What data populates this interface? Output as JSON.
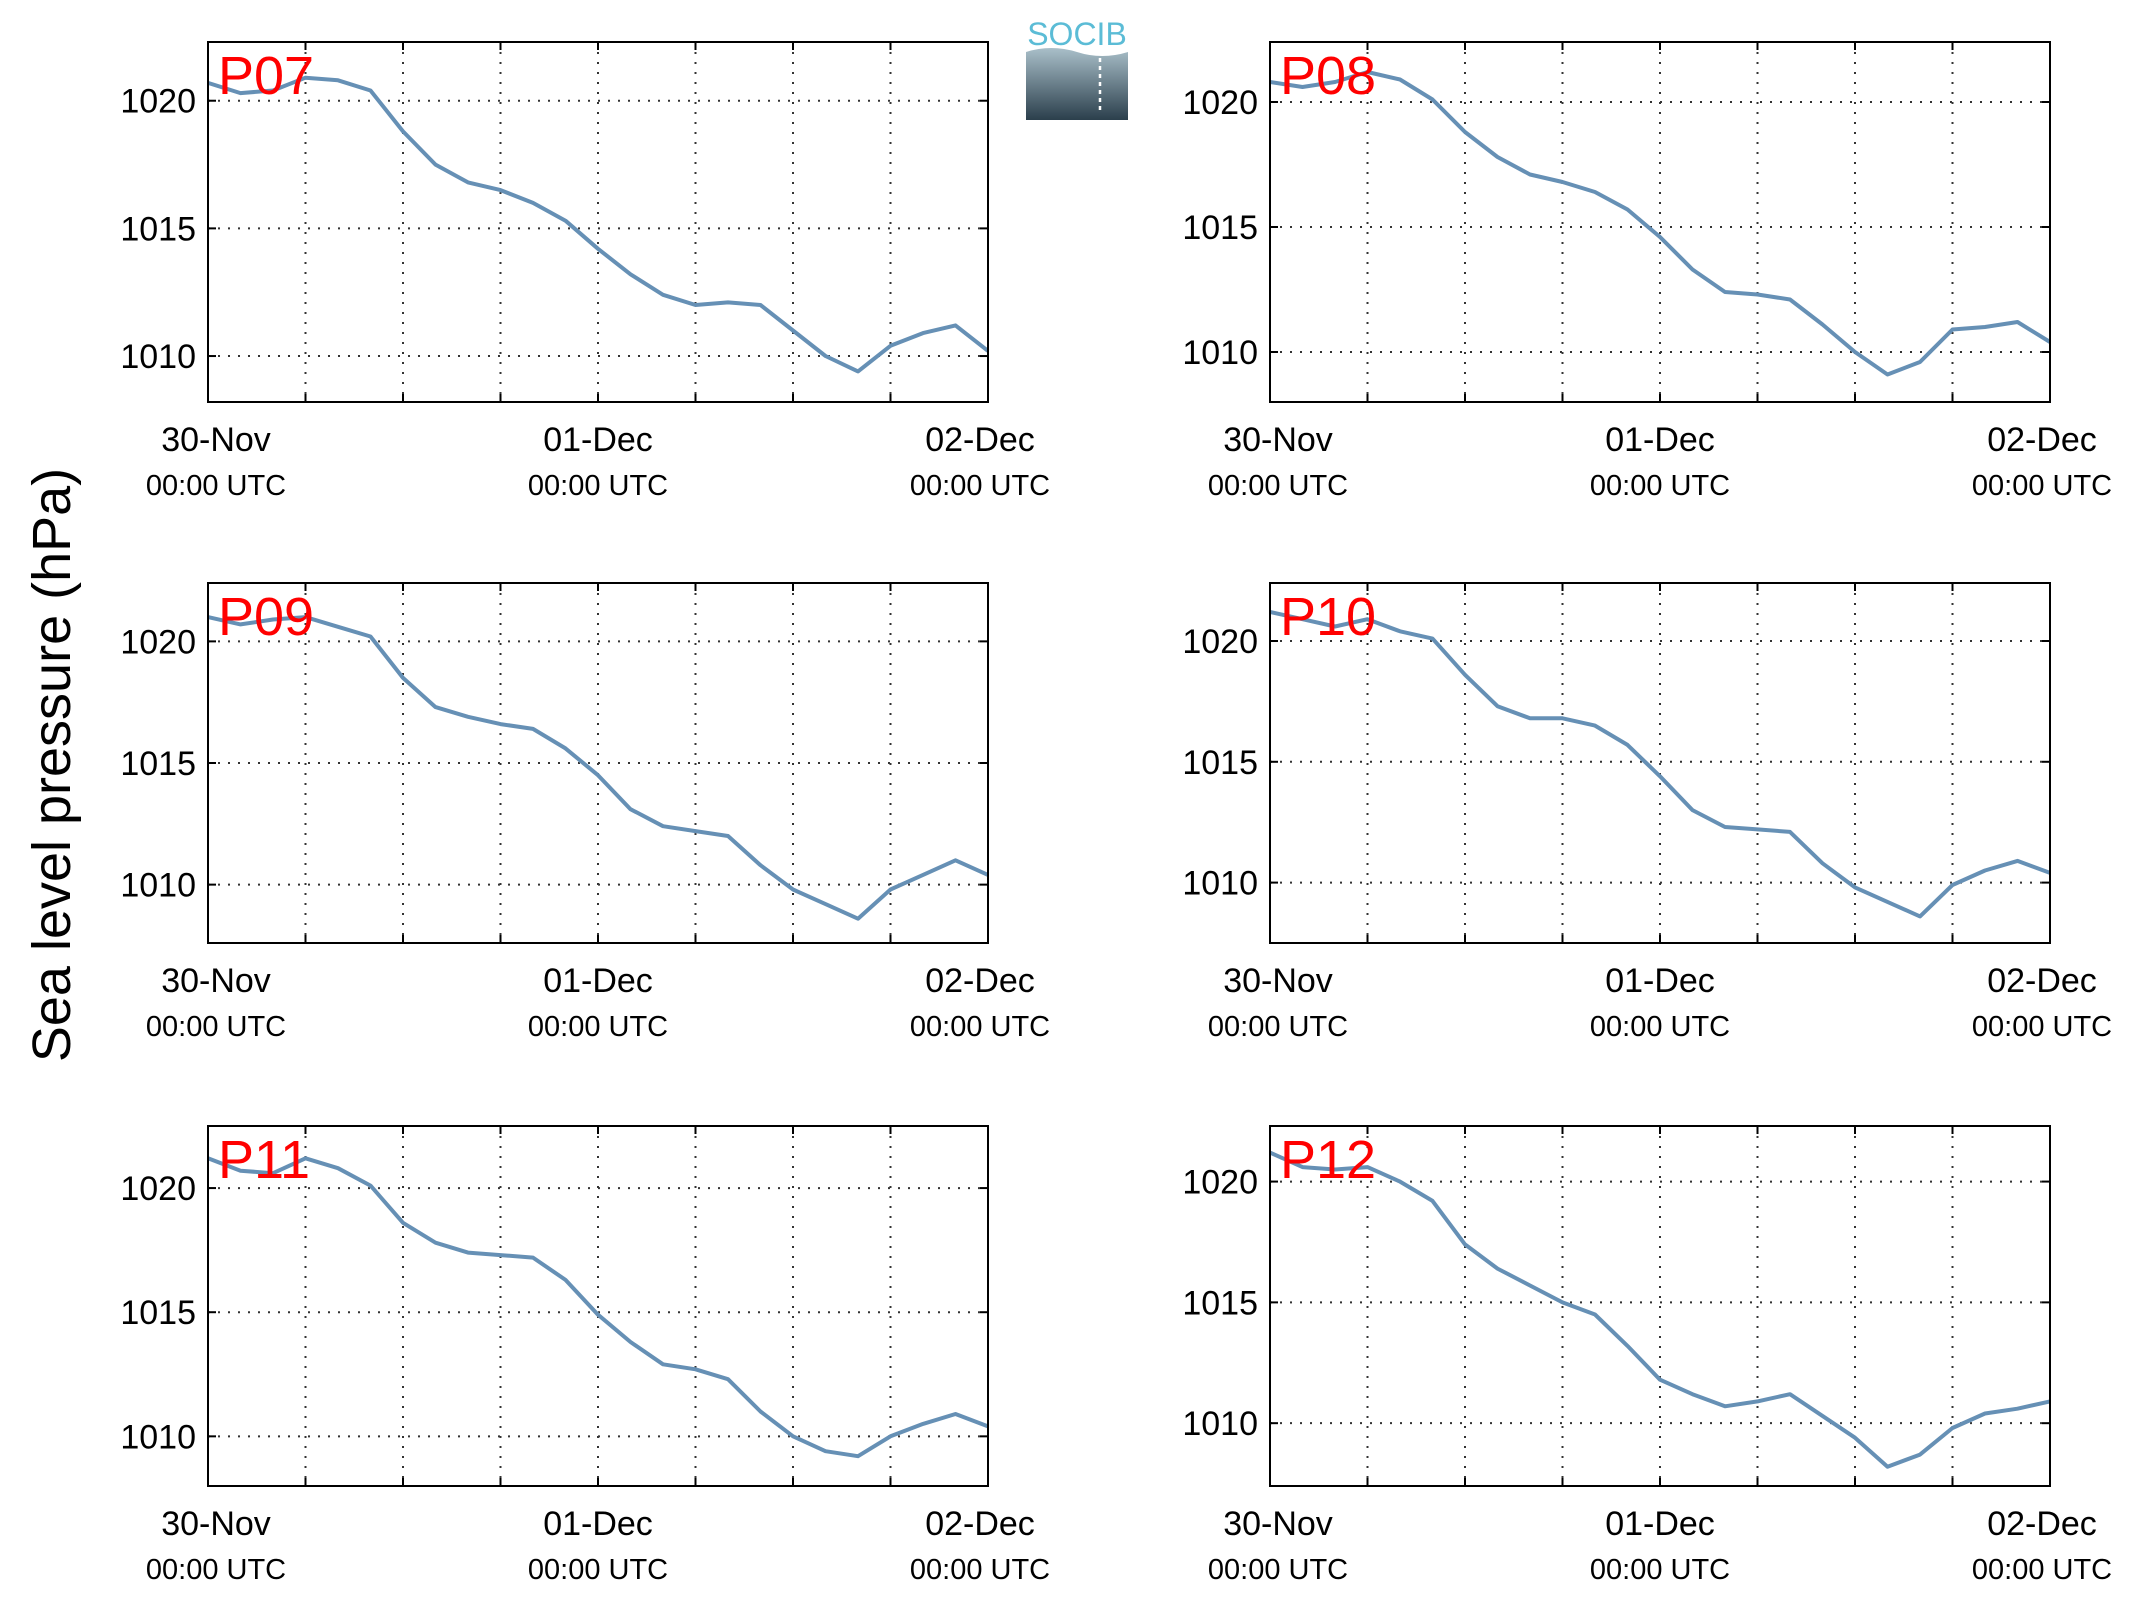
{
  "figure": {
    "ylabel": "Sea level pressure (hPa)",
    "logo_text": "SOCIB",
    "colors": {
      "line": "#6690b5",
      "station_label": "#ff0000",
      "grid": "#333333",
      "axes": "#000000",
      "logo_top": "#5bbcd6",
      "logo_bottom": "#2b3f4c"
    }
  },
  "chart_data": [
    {
      "type": "line",
      "station": "P07",
      "x_ticks": [
        {
          "line1": "30-Nov",
          "line2": "00:00 UTC"
        },
        {
          "line1": "01-Dec",
          "line2": "00:00 UTC"
        },
        {
          "line1": "02-Dec",
          "line2": "00:00 UTC"
        }
      ],
      "x_hours": [
        0,
        2,
        4,
        6,
        8,
        10,
        12,
        14,
        16,
        18,
        20,
        22,
        24,
        26,
        28,
        30,
        32,
        34,
        36,
        38,
        40,
        42,
        44,
        46,
        48
      ],
      "values": [
        1020.7,
        1020.3,
        1020.4,
        1020.9,
        1020.8,
        1020.4,
        1018.8,
        1017.5,
        1016.8,
        1016.5,
        1016.0,
        1015.3,
        1014.2,
        1013.2,
        1012.4,
        1012.0,
        1012.1,
        1012.0,
        1011.0,
        1010.0,
        1009.4,
        1010.4,
        1010.9,
        1011.2,
        1010.2
      ],
      "y_ticks": [
        1010,
        1015,
        1020
      ],
      "ylim": [
        1008.2,
        1022.3
      ],
      "xlim_hours": [
        0,
        48
      ],
      "grid": true
    },
    {
      "type": "line",
      "station": "P08",
      "x_ticks": [
        {
          "line1": "30-Nov",
          "line2": "00:00 UTC"
        },
        {
          "line1": "01-Dec",
          "line2": "00:00 UTC"
        },
        {
          "line1": "02-Dec",
          "line2": "00:00 UTC"
        }
      ],
      "x_hours": [
        0,
        2,
        4,
        6,
        8,
        10,
        12,
        14,
        16,
        18,
        20,
        22,
        24,
        26,
        28,
        30,
        32,
        34,
        36,
        38,
        40,
        42,
        44,
        46,
        48
      ],
      "values": [
        1020.8,
        1020.6,
        1020.8,
        1021.2,
        1020.9,
        1020.1,
        1018.8,
        1017.8,
        1017.1,
        1016.8,
        1016.4,
        1015.7,
        1014.6,
        1013.3,
        1012.4,
        1012.3,
        1012.1,
        1011.1,
        1010.0,
        1009.1,
        1009.6,
        1010.9,
        1011.0,
        1011.2,
        1010.4
      ],
      "y_ticks": [
        1010,
        1015,
        1020
      ],
      "ylim": [
        1008.0,
        1022.4
      ],
      "xlim_hours": [
        0,
        48
      ],
      "grid": true
    },
    {
      "type": "line",
      "station": "P09",
      "x_ticks": [
        {
          "line1": "30-Nov",
          "line2": "00:00 UTC"
        },
        {
          "line1": "01-Dec",
          "line2": "00:00 UTC"
        },
        {
          "line1": "02-Dec",
          "line2": "00:00 UTC"
        }
      ],
      "x_hours": [
        0,
        2,
        4,
        6,
        8,
        10,
        12,
        14,
        16,
        18,
        20,
        22,
        24,
        26,
        28,
        30,
        32,
        34,
        36,
        38,
        40,
        42,
        44,
        46,
        48
      ],
      "values": [
        1021.0,
        1020.7,
        1020.9,
        1021.0,
        1020.6,
        1020.2,
        1018.5,
        1017.3,
        1016.9,
        1016.6,
        1016.4,
        1015.6,
        1014.5,
        1013.1,
        1012.4,
        1012.2,
        1012.0,
        1010.8,
        1009.8,
        1009.2,
        1008.6,
        1009.8,
        1010.4,
        1011.0,
        1010.4
      ],
      "y_ticks": [
        1010,
        1015,
        1020
      ],
      "ylim": [
        1007.6,
        1022.4
      ],
      "xlim_hours": [
        0,
        48
      ],
      "grid": true
    },
    {
      "type": "line",
      "station": "P10",
      "x_ticks": [
        {
          "line1": "30-Nov",
          "line2": "00:00 UTC"
        },
        {
          "line1": "01-Dec",
          "line2": "00:00 UTC"
        },
        {
          "line1": "02-Dec",
          "line2": "00:00 UTC"
        }
      ],
      "x_hours": [
        0,
        2,
        4,
        6,
        8,
        10,
        12,
        14,
        16,
        18,
        20,
        22,
        24,
        26,
        28,
        30,
        32,
        34,
        36,
        38,
        40,
        42,
        44,
        46,
        48
      ],
      "values": [
        1021.2,
        1020.9,
        1020.6,
        1020.9,
        1020.4,
        1020.1,
        1018.6,
        1017.3,
        1016.8,
        1016.8,
        1016.5,
        1015.7,
        1014.4,
        1013.0,
        1012.3,
        1012.2,
        1012.1,
        1010.8,
        1009.8,
        1009.2,
        1008.6,
        1009.9,
        1010.5,
        1010.9,
        1010.4
      ],
      "y_ticks": [
        1010,
        1015,
        1020
      ],
      "ylim": [
        1007.5,
        1022.4
      ],
      "xlim_hours": [
        0,
        48
      ],
      "grid": true
    },
    {
      "type": "line",
      "station": "P11",
      "x_ticks": [
        {
          "line1": "30-Nov",
          "line2": "00:00 UTC"
        },
        {
          "line1": "01-Dec",
          "line2": "00:00 UTC"
        },
        {
          "line1": "02-Dec",
          "line2": "00:00 UTC"
        }
      ],
      "x_hours": [
        0,
        2,
        4,
        6,
        8,
        10,
        12,
        14,
        16,
        18,
        20,
        22,
        24,
        26,
        28,
        30,
        32,
        34,
        36,
        38,
        40,
        42,
        44,
        46,
        48
      ],
      "values": [
        1021.2,
        1020.7,
        1020.6,
        1021.2,
        1020.8,
        1020.1,
        1018.6,
        1017.8,
        1017.4,
        1017.3,
        1017.2,
        1016.3,
        1014.9,
        1013.8,
        1012.9,
        1012.7,
        1012.3,
        1011.0,
        1010.0,
        1009.4,
        1009.2,
        1010.0,
        1010.5,
        1010.9,
        1010.4
      ],
      "y_ticks": [
        1010,
        1015,
        1020
      ],
      "ylim": [
        1008.0,
        1022.5
      ],
      "xlim_hours": [
        0,
        48
      ],
      "grid": true
    },
    {
      "type": "line",
      "station": "P12",
      "x_ticks": [
        {
          "line1": "30-Nov",
          "line2": "00:00 UTC"
        },
        {
          "line1": "01-Dec",
          "line2": "00:00 UTC"
        },
        {
          "line1": "02-Dec",
          "line2": "00:00 UTC"
        }
      ],
      "x_hours": [
        0,
        2,
        4,
        6,
        8,
        10,
        12,
        14,
        16,
        18,
        20,
        22,
        24,
        26,
        28,
        30,
        32,
        34,
        36,
        38,
        40,
        42,
        44,
        46,
        48
      ],
      "values": [
        1021.2,
        1020.6,
        1020.5,
        1020.6,
        1020.0,
        1019.2,
        1017.4,
        1016.4,
        1015.7,
        1015.0,
        1014.5,
        1013.2,
        1011.8,
        1011.2,
        1010.7,
        1010.9,
        1011.2,
        1010.3,
        1009.4,
        1008.2,
        1008.7,
        1009.8,
        1010.4,
        1010.6,
        1010.9
      ],
      "y_ticks": [
        1010,
        1015,
        1020
      ],
      "ylim": [
        1007.4,
        1022.3
      ],
      "xlim_hours": [
        0,
        48
      ],
      "grid": true
    }
  ]
}
